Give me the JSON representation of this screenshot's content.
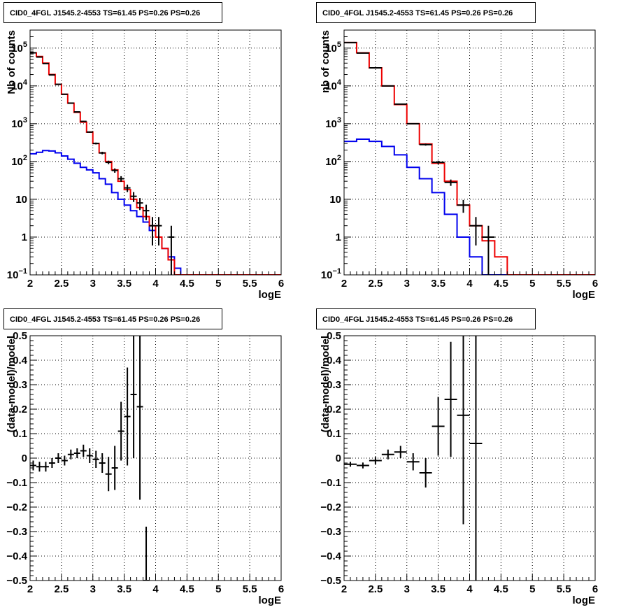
{
  "chart_data": [
    {
      "id": "p1",
      "type": "histogram",
      "title": "CID0_4FGL J1545.2-4553 TS=61.45 PS=0.26 PS=0.26",
      "xlabel": "logE",
      "ylabel": "Nb of counts",
      "xlim": [
        2,
        6
      ],
      "ylim": [
        0.1,
        300000
      ],
      "yscale": "log",
      "grid": true,
      "xticks": [
        "2",
        "2.5",
        "3",
        "3.5",
        "4",
        "4.5",
        "5",
        "5.5",
        "6"
      ],
      "yticks": [
        {
          "v": 0.1,
          "base": "10",
          "exp": "−1"
        },
        {
          "v": 1,
          "label": "1"
        },
        {
          "v": 10,
          "label": "10"
        },
        {
          "v": 100,
          "base": "10",
          "exp": "2"
        },
        {
          "v": 1000,
          "base": "10",
          "exp": "3"
        },
        {
          "v": 10000,
          "base": "10",
          "exp": "4"
        },
        {
          "v": 100000,
          "base": "10",
          "exp": "5"
        }
      ],
      "bin_edges": [
        2.0,
        2.1,
        2.2,
        2.3,
        2.4,
        2.5,
        2.6,
        2.7,
        2.8,
        2.9,
        3.0,
        3.1,
        3.2,
        3.3,
        3.4,
        3.5,
        3.6,
        3.7,
        3.8,
        3.9,
        4.0,
        4.1,
        4.2,
        4.3,
        4.4,
        4.5,
        4.6,
        4.7,
        4.8,
        4.9,
        5.0,
        5.1,
        5.2,
        5.3,
        5.4,
        5.5,
        5.6,
        5.7,
        5.8,
        5.9,
        6.0
      ],
      "series": [
        {
          "color": "#0000ee",
          "values": [
            160,
            175,
            195,
            190,
            170,
            140,
            115,
            90,
            70,
            60,
            50,
            35,
            25,
            15,
            10,
            7,
            5,
            3.5,
            2.5,
            1.5,
            1,
            0.5,
            0.3,
            0.15,
            0.1,
            0.1,
            0.1,
            0.1,
            0.1,
            0.1,
            0.1,
            0.1,
            0.1,
            0.1,
            0.1,
            0.1,
            0.1,
            0.1,
            0.1,
            0.1
          ]
        },
        {
          "color": "#ee0000",
          "values": [
            75000,
            60000,
            40000,
            20000,
            11000,
            6000,
            3500,
            2000,
            1100,
            600,
            300,
            170,
            100,
            60,
            30,
            18,
            10,
            6,
            3.5,
            2,
            1,
            0.5,
            0.25,
            0.1,
            0.1,
            0.1,
            0.1,
            0.1,
            0.1,
            0.1,
            0.1,
            0.1,
            0.1,
            0.1,
            0.1,
            0.1,
            0.1,
            0.1,
            0.1,
            0.1
          ]
        }
      ],
      "points": [
        {
          "x": 2.05,
          "y": 75000,
          "yerr": 270
        },
        {
          "x": 2.15,
          "y": 58000,
          "yerr": 240
        },
        {
          "x": 2.25,
          "y": 39000,
          "yerr": 200
        },
        {
          "x": 2.35,
          "y": 19500,
          "yerr": 140
        },
        {
          "x": 2.45,
          "y": 11000,
          "yerr": 105
        },
        {
          "x": 2.55,
          "y": 6000,
          "yerr": 77
        },
        {
          "x": 2.65,
          "y": 3500,
          "yerr": 59
        },
        {
          "x": 2.75,
          "y": 2050,
          "yerr": 45
        },
        {
          "x": 2.85,
          "y": 1150,
          "yerr": 34
        },
        {
          "x": 2.95,
          "y": 600,
          "yerr": 24
        },
        {
          "x": 3.05,
          "y": 300,
          "yerr": 17
        },
        {
          "x": 3.15,
          "y": 168,
          "yerr": 13
        },
        {
          "x": 3.25,
          "y": 95,
          "yerr": 10
        },
        {
          "x": 3.35,
          "y": 58,
          "yerr": 7.6
        },
        {
          "x": 3.45,
          "y": 35,
          "yerr": 5.9
        },
        {
          "x": 3.55,
          "y": 20,
          "yerr": 4.5
        },
        {
          "x": 3.65,
          "y": 12,
          "yerr": 3.5
        },
        {
          "x": 3.75,
          "y": 8,
          "yerr": 2.8
        },
        {
          "x": 3.85,
          "y": 5,
          "yerr": 2.2
        },
        {
          "x": 3.95,
          "y": 2,
          "yerr": 1.4
        },
        {
          "x": 4.05,
          "y": 2,
          "yerr": 1.4
        },
        {
          "x": 4.25,
          "y": 1,
          "yerr": 1
        }
      ]
    },
    {
      "id": "p2",
      "type": "histogram",
      "title": "CID0_4FGL J1545.2-4553 TS=61.45 PS=0.26 PS=0.26",
      "xlabel": "logE",
      "ylabel": "nb of counts",
      "xlim": [
        2,
        6
      ],
      "ylim": [
        0.1,
        300000
      ],
      "yscale": "log",
      "grid": true,
      "xticks": [
        "2",
        "2.5",
        "3",
        "3.5",
        "4",
        "4.5",
        "5",
        "5.5",
        "6"
      ],
      "yticks": [
        {
          "v": 0.1,
          "base": "10",
          "exp": "−1"
        },
        {
          "v": 1,
          "label": "1"
        },
        {
          "v": 10,
          "label": "10"
        },
        {
          "v": 100,
          "base": "10",
          "exp": "2"
        },
        {
          "v": 1000,
          "base": "10",
          "exp": "3"
        },
        {
          "v": 10000,
          "base": "10",
          "exp": "4"
        },
        {
          "v": 100000,
          "base": "10",
          "exp": "5"
        }
      ],
      "bin_edges": [
        2.0,
        2.2,
        2.4,
        2.6,
        2.8,
        3.0,
        3.2,
        3.4,
        3.6,
        3.8,
        4.0,
        4.2,
        4.4,
        4.6,
        4.8,
        5.0,
        5.2,
        5.4,
        5.6,
        5.8,
        6.0
      ],
      "series": [
        {
          "color": "#0000ee",
          "values": [
            340,
            390,
            340,
            250,
            150,
            70,
            35,
            15,
            4,
            1,
            0.3,
            0.1,
            0.1,
            0.1,
            0.1,
            0.1,
            0.1,
            0.1,
            0.1,
            0.1
          ]
        },
        {
          "color": "#ee0000",
          "values": [
            140000,
            75000,
            30000,
            10000,
            3200,
            1000,
            290,
            90,
            30,
            7,
            2,
            0.8,
            0.3,
            0.1,
            0.1,
            0.1,
            0.1,
            0.1,
            0.1,
            0.1
          ]
        }
      ],
      "points": [
        {
          "x": 2.1,
          "y": 140000,
          "yerr": 370
        },
        {
          "x": 2.3,
          "y": 74000,
          "yerr": 270
        },
        {
          "x": 2.5,
          "y": 30000,
          "yerr": 170
        },
        {
          "x": 2.7,
          "y": 10000,
          "yerr": 100
        },
        {
          "x": 2.9,
          "y": 3300,
          "yerr": 57
        },
        {
          "x": 3.1,
          "y": 1000,
          "yerr": 32
        },
        {
          "x": 3.3,
          "y": 280,
          "yerr": 17
        },
        {
          "x": 3.5,
          "y": 95,
          "yerr": 10
        },
        {
          "x": 3.7,
          "y": 28,
          "yerr": 5.3
        },
        {
          "x": 3.9,
          "y": 7,
          "yerr": 2.6
        },
        {
          "x": 4.1,
          "y": 2,
          "yerr": 1.4
        },
        {
          "x": 4.3,
          "y": 1,
          "yerr": 1
        }
      ]
    },
    {
      "id": "p3",
      "type": "scatter",
      "title": "CID0_4FGL J1545.2-4553 TS=61.45 PS=0.26 PS=0.26",
      "xlabel": "logE",
      "ylabel": "(data-model)/model",
      "xlim": [
        2,
        6
      ],
      "ylim": [
        -0.5,
        0.5
      ],
      "yscale": "linear",
      "grid": true,
      "xticks": [
        "2",
        "2.5",
        "3",
        "3.5",
        "4",
        "4.5",
        "5",
        "5.5",
        "6"
      ],
      "yticks": [
        {
          "v": -0.5,
          "label": "−0.5"
        },
        {
          "v": -0.4,
          "label": "−0.4"
        },
        {
          "v": -0.3,
          "label": "−0.3"
        },
        {
          "v": -0.2,
          "label": "−0.2"
        },
        {
          "v": -0.1,
          "label": "−0.1"
        },
        {
          "v": 0,
          "label": "0"
        },
        {
          "v": 0.1,
          "label": "0.1"
        },
        {
          "v": 0.2,
          "label": "0.2"
        },
        {
          "v": 0.3,
          "label": "0.3"
        },
        {
          "v": 0.4,
          "label": "0.4"
        },
        {
          "v": 0.5,
          "label": "0.5"
        }
      ],
      "xhalf": 0.05,
      "points": [
        {
          "x": 2.05,
          "y": -0.03,
          "yerr": 0.02
        },
        {
          "x": 2.15,
          "y": -0.035,
          "yerr": 0.02
        },
        {
          "x": 2.25,
          "y": -0.035,
          "yerr": 0.02
        },
        {
          "x": 2.35,
          "y": -0.02,
          "yerr": 0.02
        },
        {
          "x": 2.45,
          "y": 0.0,
          "yerr": 0.02
        },
        {
          "x": 2.55,
          "y": -0.01,
          "yerr": 0.02
        },
        {
          "x": 2.65,
          "y": 0.015,
          "yerr": 0.02
        },
        {
          "x": 2.75,
          "y": 0.02,
          "yerr": 0.02
        },
        {
          "x": 2.85,
          "y": 0.03,
          "yerr": 0.025
        },
        {
          "x": 2.95,
          "y": 0.01,
          "yerr": 0.03
        },
        {
          "x": 3.05,
          "y": -0.005,
          "yerr": 0.035
        },
        {
          "x": 3.15,
          "y": -0.02,
          "yerr": 0.04
        },
        {
          "x": 3.25,
          "y": -0.065,
          "yerr": 0.07
        },
        {
          "x": 3.35,
          "y": -0.04,
          "yerr": 0.09
        },
        {
          "x": 3.45,
          "y": 0.11,
          "yerr": 0.12
        },
        {
          "x": 3.55,
          "y": 0.17,
          "yerr": 0.2
        },
        {
          "x": 3.65,
          "y": 0.26,
          "yerr": 0.26
        },
        {
          "x": 3.75,
          "y": 0.21,
          "yerr": 0.38
        },
        {
          "x": 3.85,
          "y": -0.5,
          "yerr": 0.22
        }
      ]
    },
    {
      "id": "p4",
      "type": "scatter",
      "title": "CID0_4FGL J1545.2-4553 TS=61.45 PS=0.26 PS=0.26",
      "xlabel": "logE",
      "ylabel": "(data-model)/model",
      "xlim": [
        2,
        6
      ],
      "ylim": [
        -0.5,
        0.5
      ],
      "yscale": "linear",
      "grid": true,
      "xticks": [
        "2",
        "2.5",
        "3",
        "3.5",
        "4",
        "4.5",
        "5",
        "5.5",
        "6"
      ],
      "yticks": [
        {
          "v": -0.5,
          "label": "−0.5"
        },
        {
          "v": -0.4,
          "label": "−0.4"
        },
        {
          "v": -0.3,
          "label": "−0.3"
        },
        {
          "v": -0.2,
          "label": "−0.2"
        },
        {
          "v": -0.1,
          "label": "−0.1"
        },
        {
          "v": 0,
          "label": "0"
        },
        {
          "v": 0.1,
          "label": "0.1"
        },
        {
          "v": 0.2,
          "label": "0.2"
        },
        {
          "v": 0.3,
          "label": "0.3"
        },
        {
          "v": 0.4,
          "label": "0.4"
        },
        {
          "v": 0.5,
          "label": "0.5"
        }
      ],
      "xhalf": 0.1,
      "points": [
        {
          "x": 2.1,
          "y": -0.025,
          "yerr": 0.01
        },
        {
          "x": 2.3,
          "y": -0.03,
          "yerr": 0.012
        },
        {
          "x": 2.5,
          "y": -0.01,
          "yerr": 0.015
        },
        {
          "x": 2.7,
          "y": 0.015,
          "yerr": 0.02
        },
        {
          "x": 2.9,
          "y": 0.025,
          "yerr": 0.025
        },
        {
          "x": 3.1,
          "y": -0.015,
          "yerr": 0.035
        },
        {
          "x": 3.3,
          "y": -0.06,
          "yerr": 0.06
        },
        {
          "x": 3.5,
          "y": 0.13,
          "yerr": 0.12
        },
        {
          "x": 3.7,
          "y": 0.24,
          "yerr": 0.235
        },
        {
          "x": 3.9,
          "y": 0.175,
          "yerr": 0.445
        },
        {
          "x": 4.1,
          "y": 0.06,
          "yerr": 0.6
        }
      ]
    }
  ]
}
